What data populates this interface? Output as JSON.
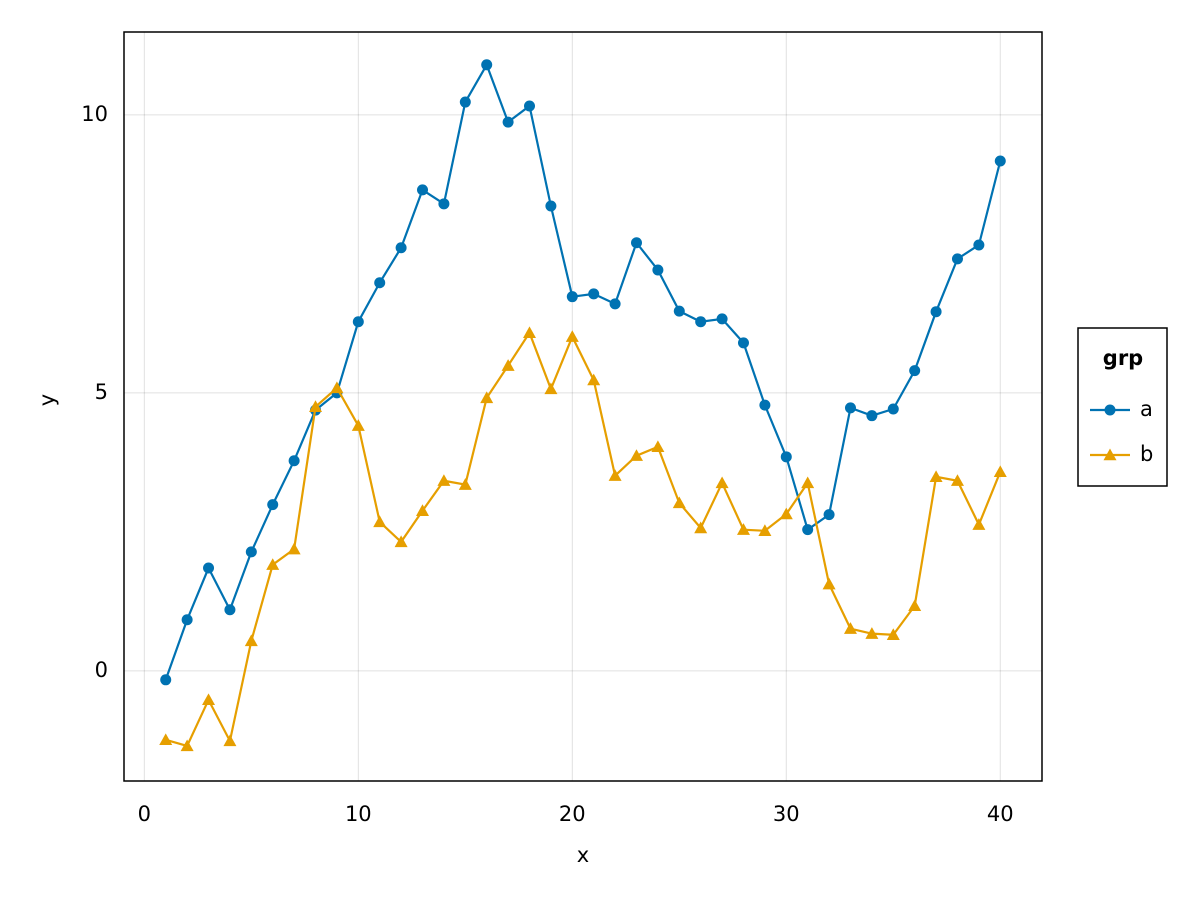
{
  "chart_data": {
    "type": "line",
    "xlabel": "x",
    "ylabel": "y",
    "x": [
      1,
      2,
      3,
      4,
      5,
      6,
      7,
      8,
      9,
      10,
      11,
      12,
      13,
      14,
      15,
      16,
      17,
      18,
      19,
      20,
      21,
      22,
      23,
      24,
      25,
      26,
      27,
      28,
      29,
      30,
      31,
      32,
      33,
      34,
      35,
      36,
      37,
      38,
      39,
      40
    ],
    "series": [
      {
        "name": "a",
        "color": "#0072b2",
        "marker": "circle",
        "values": [
          -0.16,
          0.92,
          1.85,
          1.1,
          2.14,
          2.99,
          3.78,
          4.69,
          5.0,
          6.28,
          6.98,
          7.61,
          8.65,
          8.4,
          10.23,
          10.9,
          9.87,
          10.16,
          8.36,
          6.73,
          6.78,
          6.6,
          7.7,
          7.21,
          6.47,
          6.28,
          6.33,
          5.9,
          4.78,
          3.85,
          2.54,
          2.81,
          4.73,
          4.59,
          4.71,
          5.4,
          6.46,
          7.41,
          7.66,
          9.17
        ]
      },
      {
        "name": "b",
        "color": "#e69f00",
        "marker": "triangle",
        "values": [
          -1.24,
          -1.35,
          -0.52,
          -1.26,
          0.54,
          1.91,
          2.19,
          4.75,
          5.09,
          4.41,
          2.68,
          2.32,
          2.88,
          3.42,
          3.35,
          4.91,
          5.49,
          6.08,
          5.07,
          6.01,
          5.23,
          3.51,
          3.87,
          4.03,
          3.02,
          2.57,
          3.38,
          2.54,
          2.52,
          2.82,
          3.38,
          1.56,
          0.76,
          0.67,
          0.65,
          1.17,
          3.49,
          3.42,
          2.63,
          3.58
        ]
      }
    ],
    "xlim": [
      -0.95,
      41.95
    ],
    "xticks": [
      0,
      10,
      20,
      30,
      40
    ],
    "ylim": [
      -1.98,
      11.49
    ],
    "yticks": [
      0,
      5,
      10
    ],
    "grid": true,
    "legend": {
      "title": "grp",
      "position": "right"
    }
  }
}
